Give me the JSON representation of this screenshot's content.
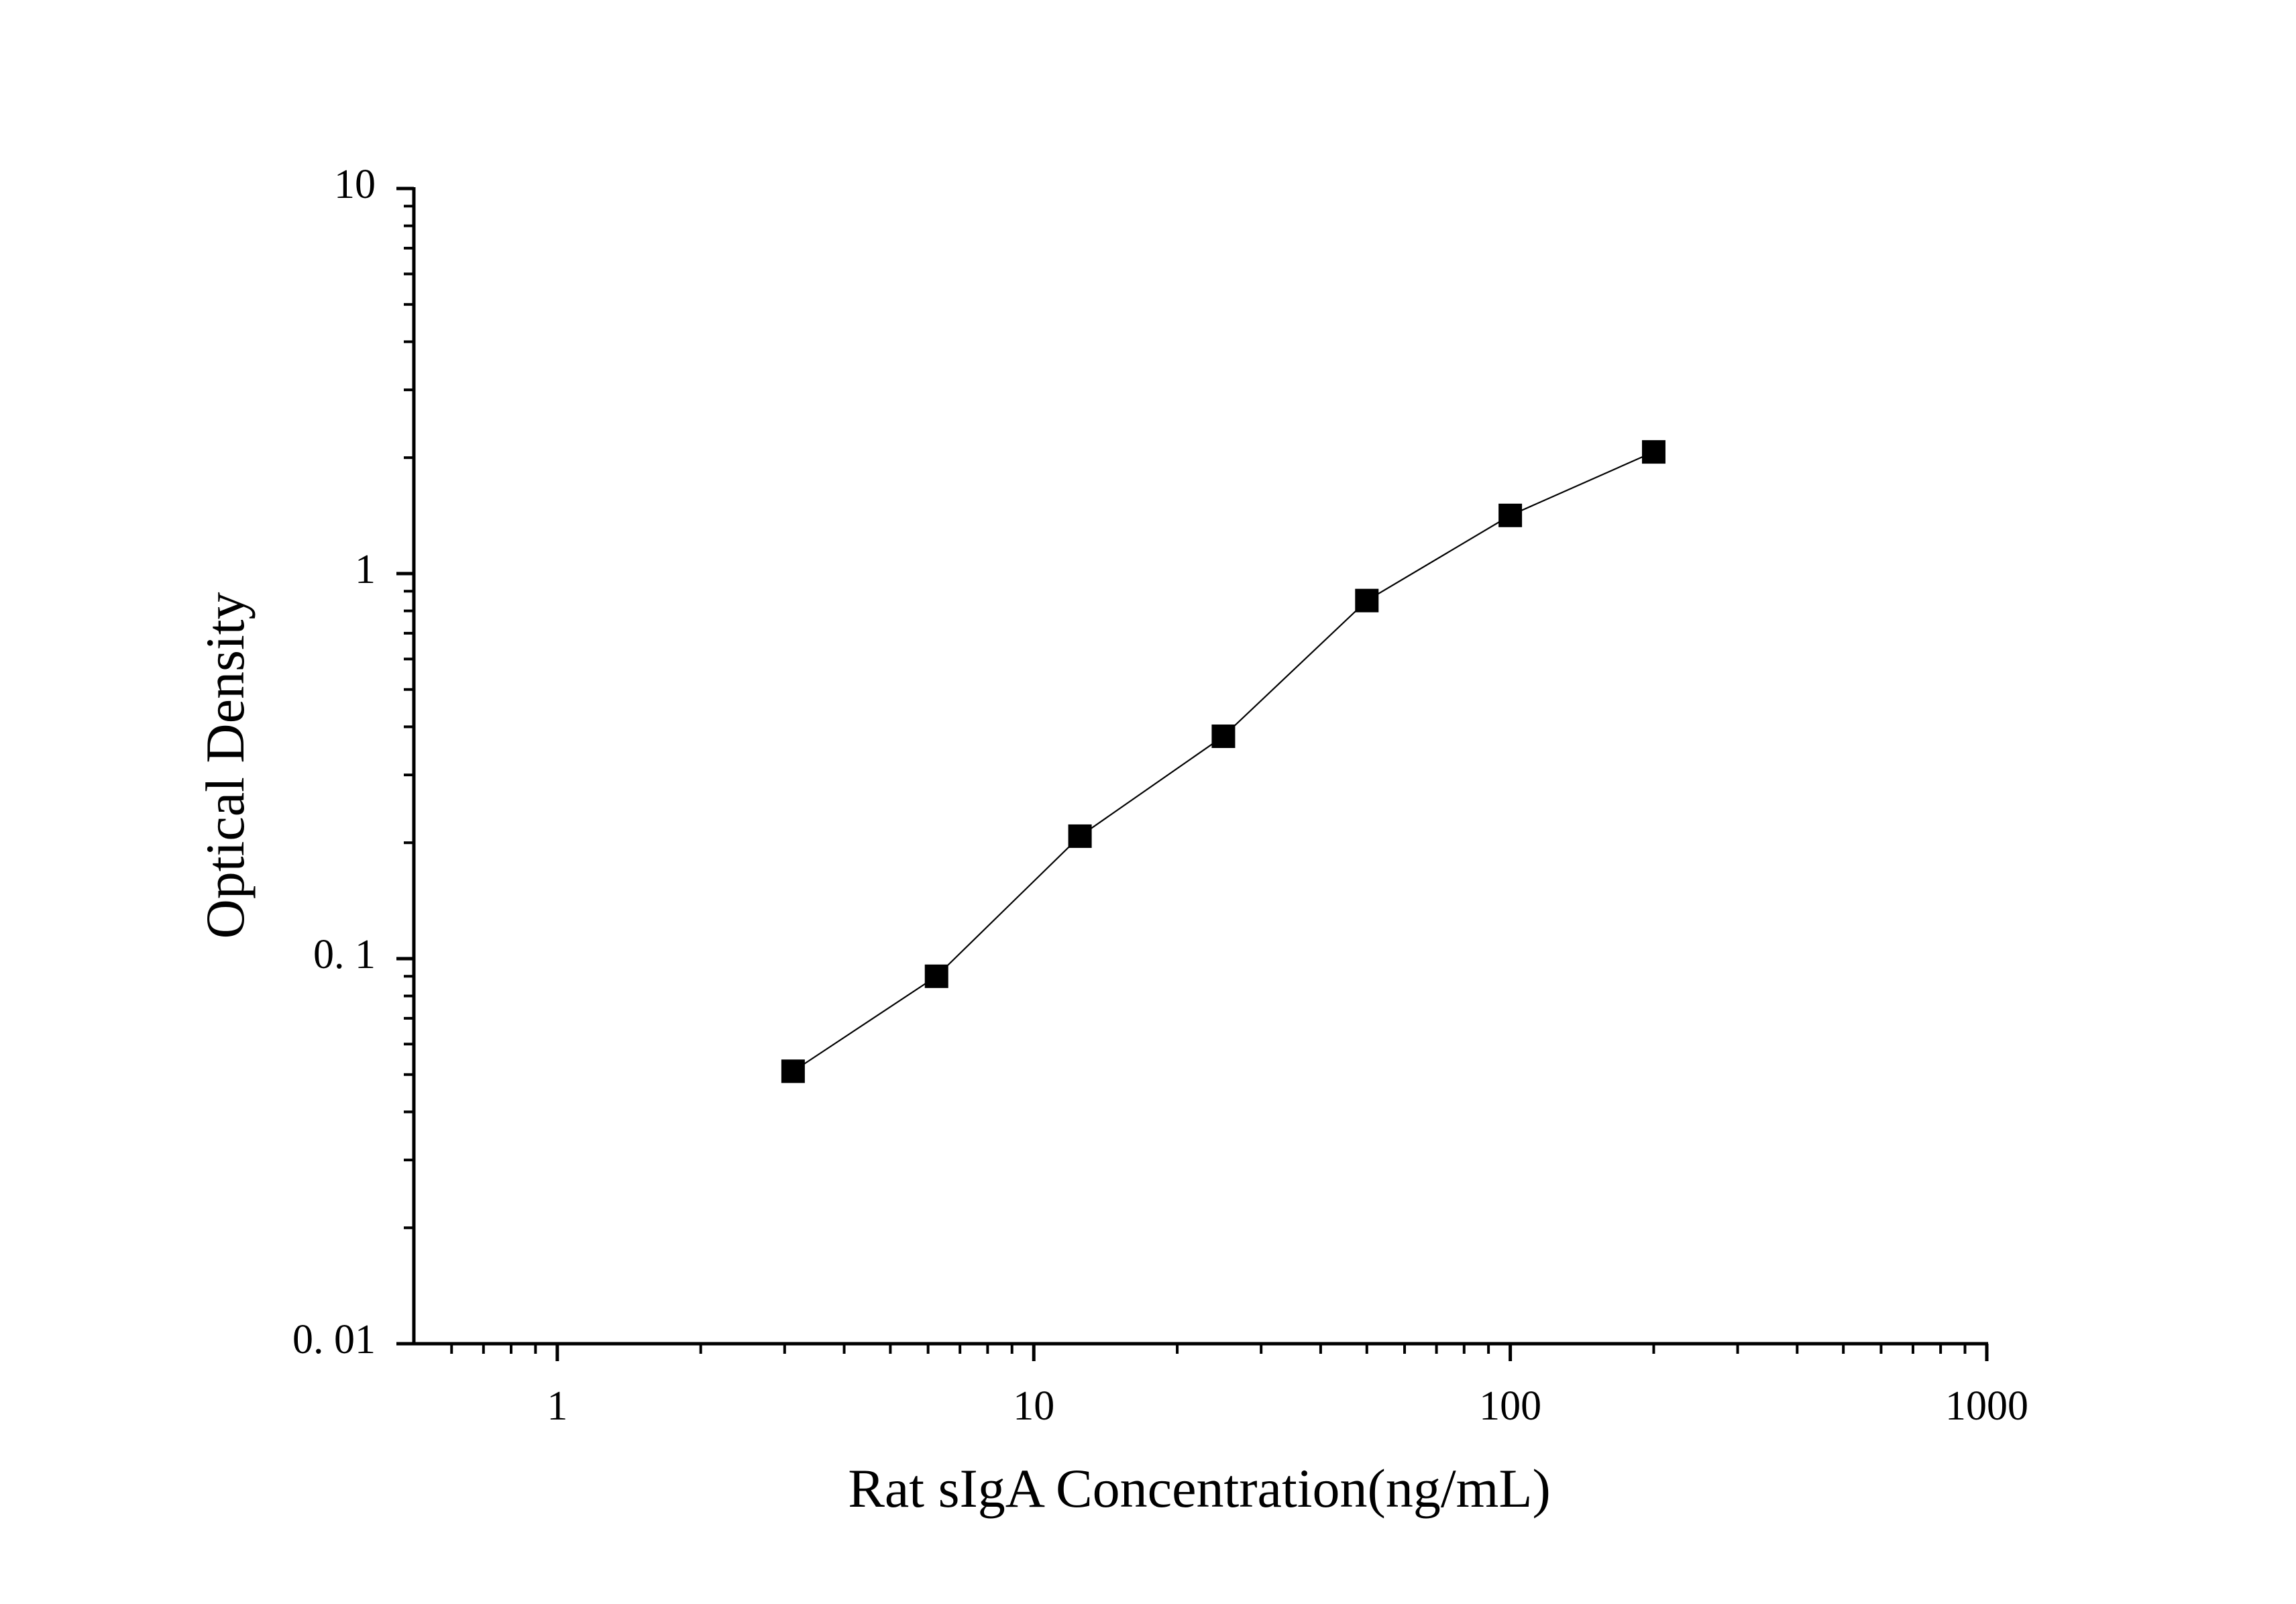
{
  "chart_data": {
    "type": "line",
    "x_label": "Rat sIgA Concentration(ng/mL)",
    "y_label": "Optical Density",
    "x": [
      3.125,
      6.25,
      12.5,
      25,
      50,
      100,
      200
    ],
    "series": [
      {
        "color": "#000000",
        "values": [
          0.051,
          0.09,
          0.208,
          0.378,
          0.851,
          1.416,
          2.07
        ]
      }
    ],
    "xlim": [
      0.5,
      1000
    ],
    "ylim": [
      0.01,
      10
    ],
    "xticks": [
      1,
      10,
      100,
      1000
    ],
    "yticks": [
      {
        "value": 0.01,
        "label": "0. 01"
      },
      {
        "value": 0.1,
        "label": "0. 1"
      },
      1,
      10
    ],
    "xscale": "log",
    "yscale": "log",
    "marker": "square"
  }
}
